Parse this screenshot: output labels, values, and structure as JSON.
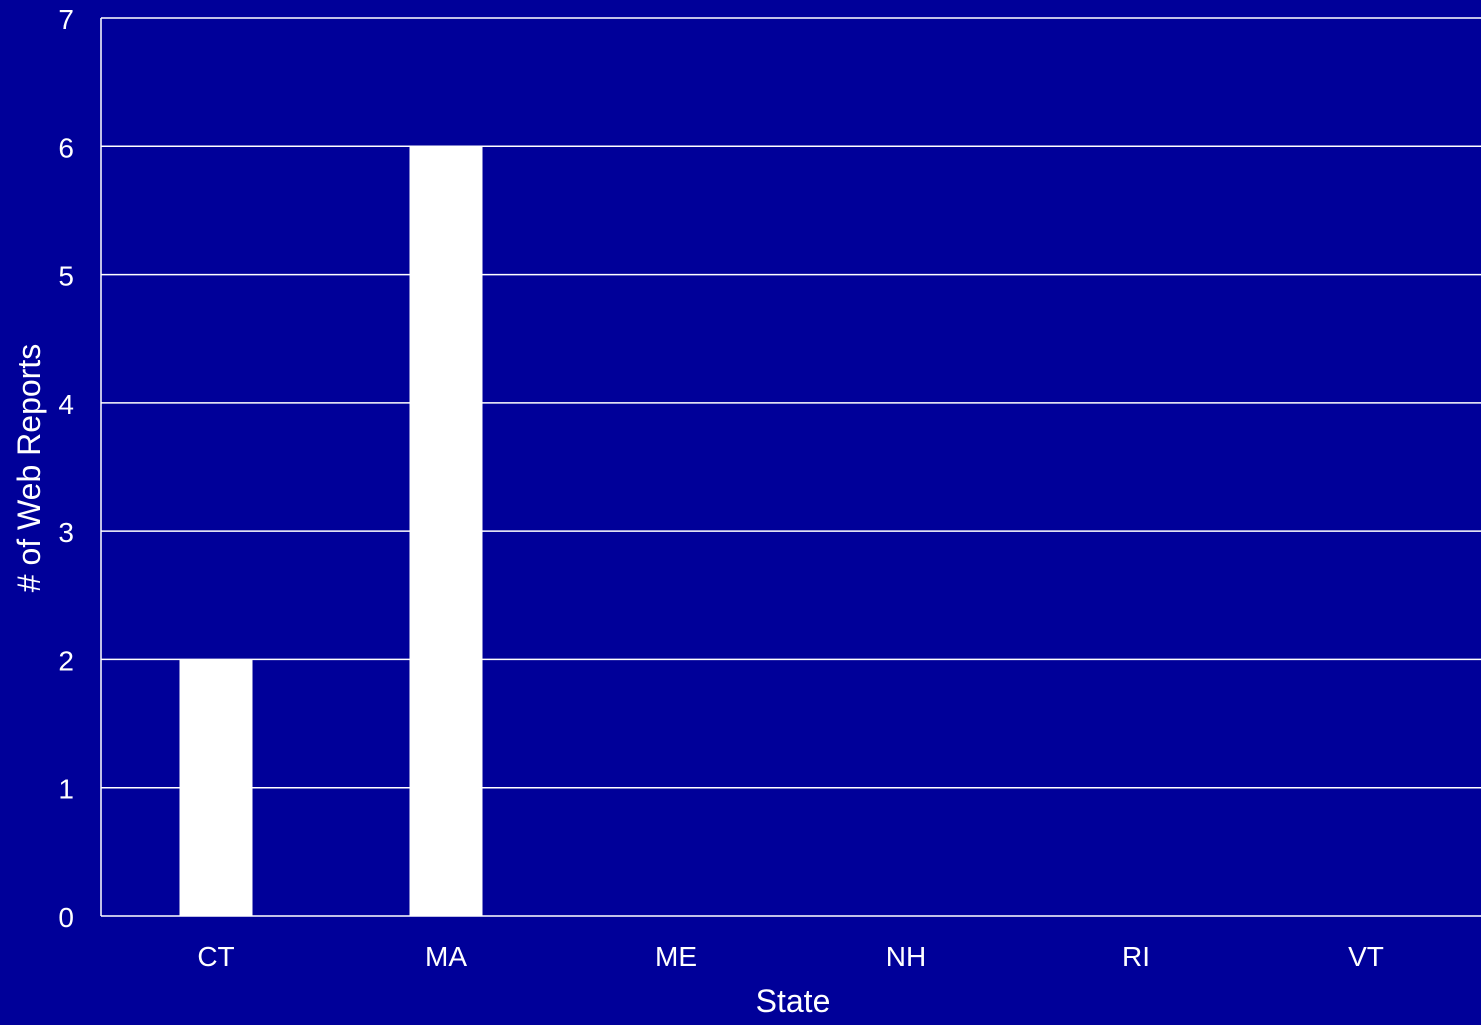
{
  "chart_data": {
    "type": "bar",
    "title": "",
    "xlabel": "State",
    "ylabel": "# of Web Reports",
    "categories": [
      "CT",
      "MA",
      "ME",
      "NH",
      "RI",
      "VT"
    ],
    "values": [
      2,
      6,
      0,
      0,
      0,
      0
    ],
    "ylim": [
      0,
      7
    ],
    "yticks": [
      "0",
      "1",
      "2",
      "3",
      "4",
      "5",
      "6",
      "7"
    ],
    "grid": true,
    "legend": "none",
    "colors": {
      "background": "#000099",
      "bar": "#ffffff",
      "gridline": "#ffffff",
      "text": "#ffffff"
    }
  }
}
